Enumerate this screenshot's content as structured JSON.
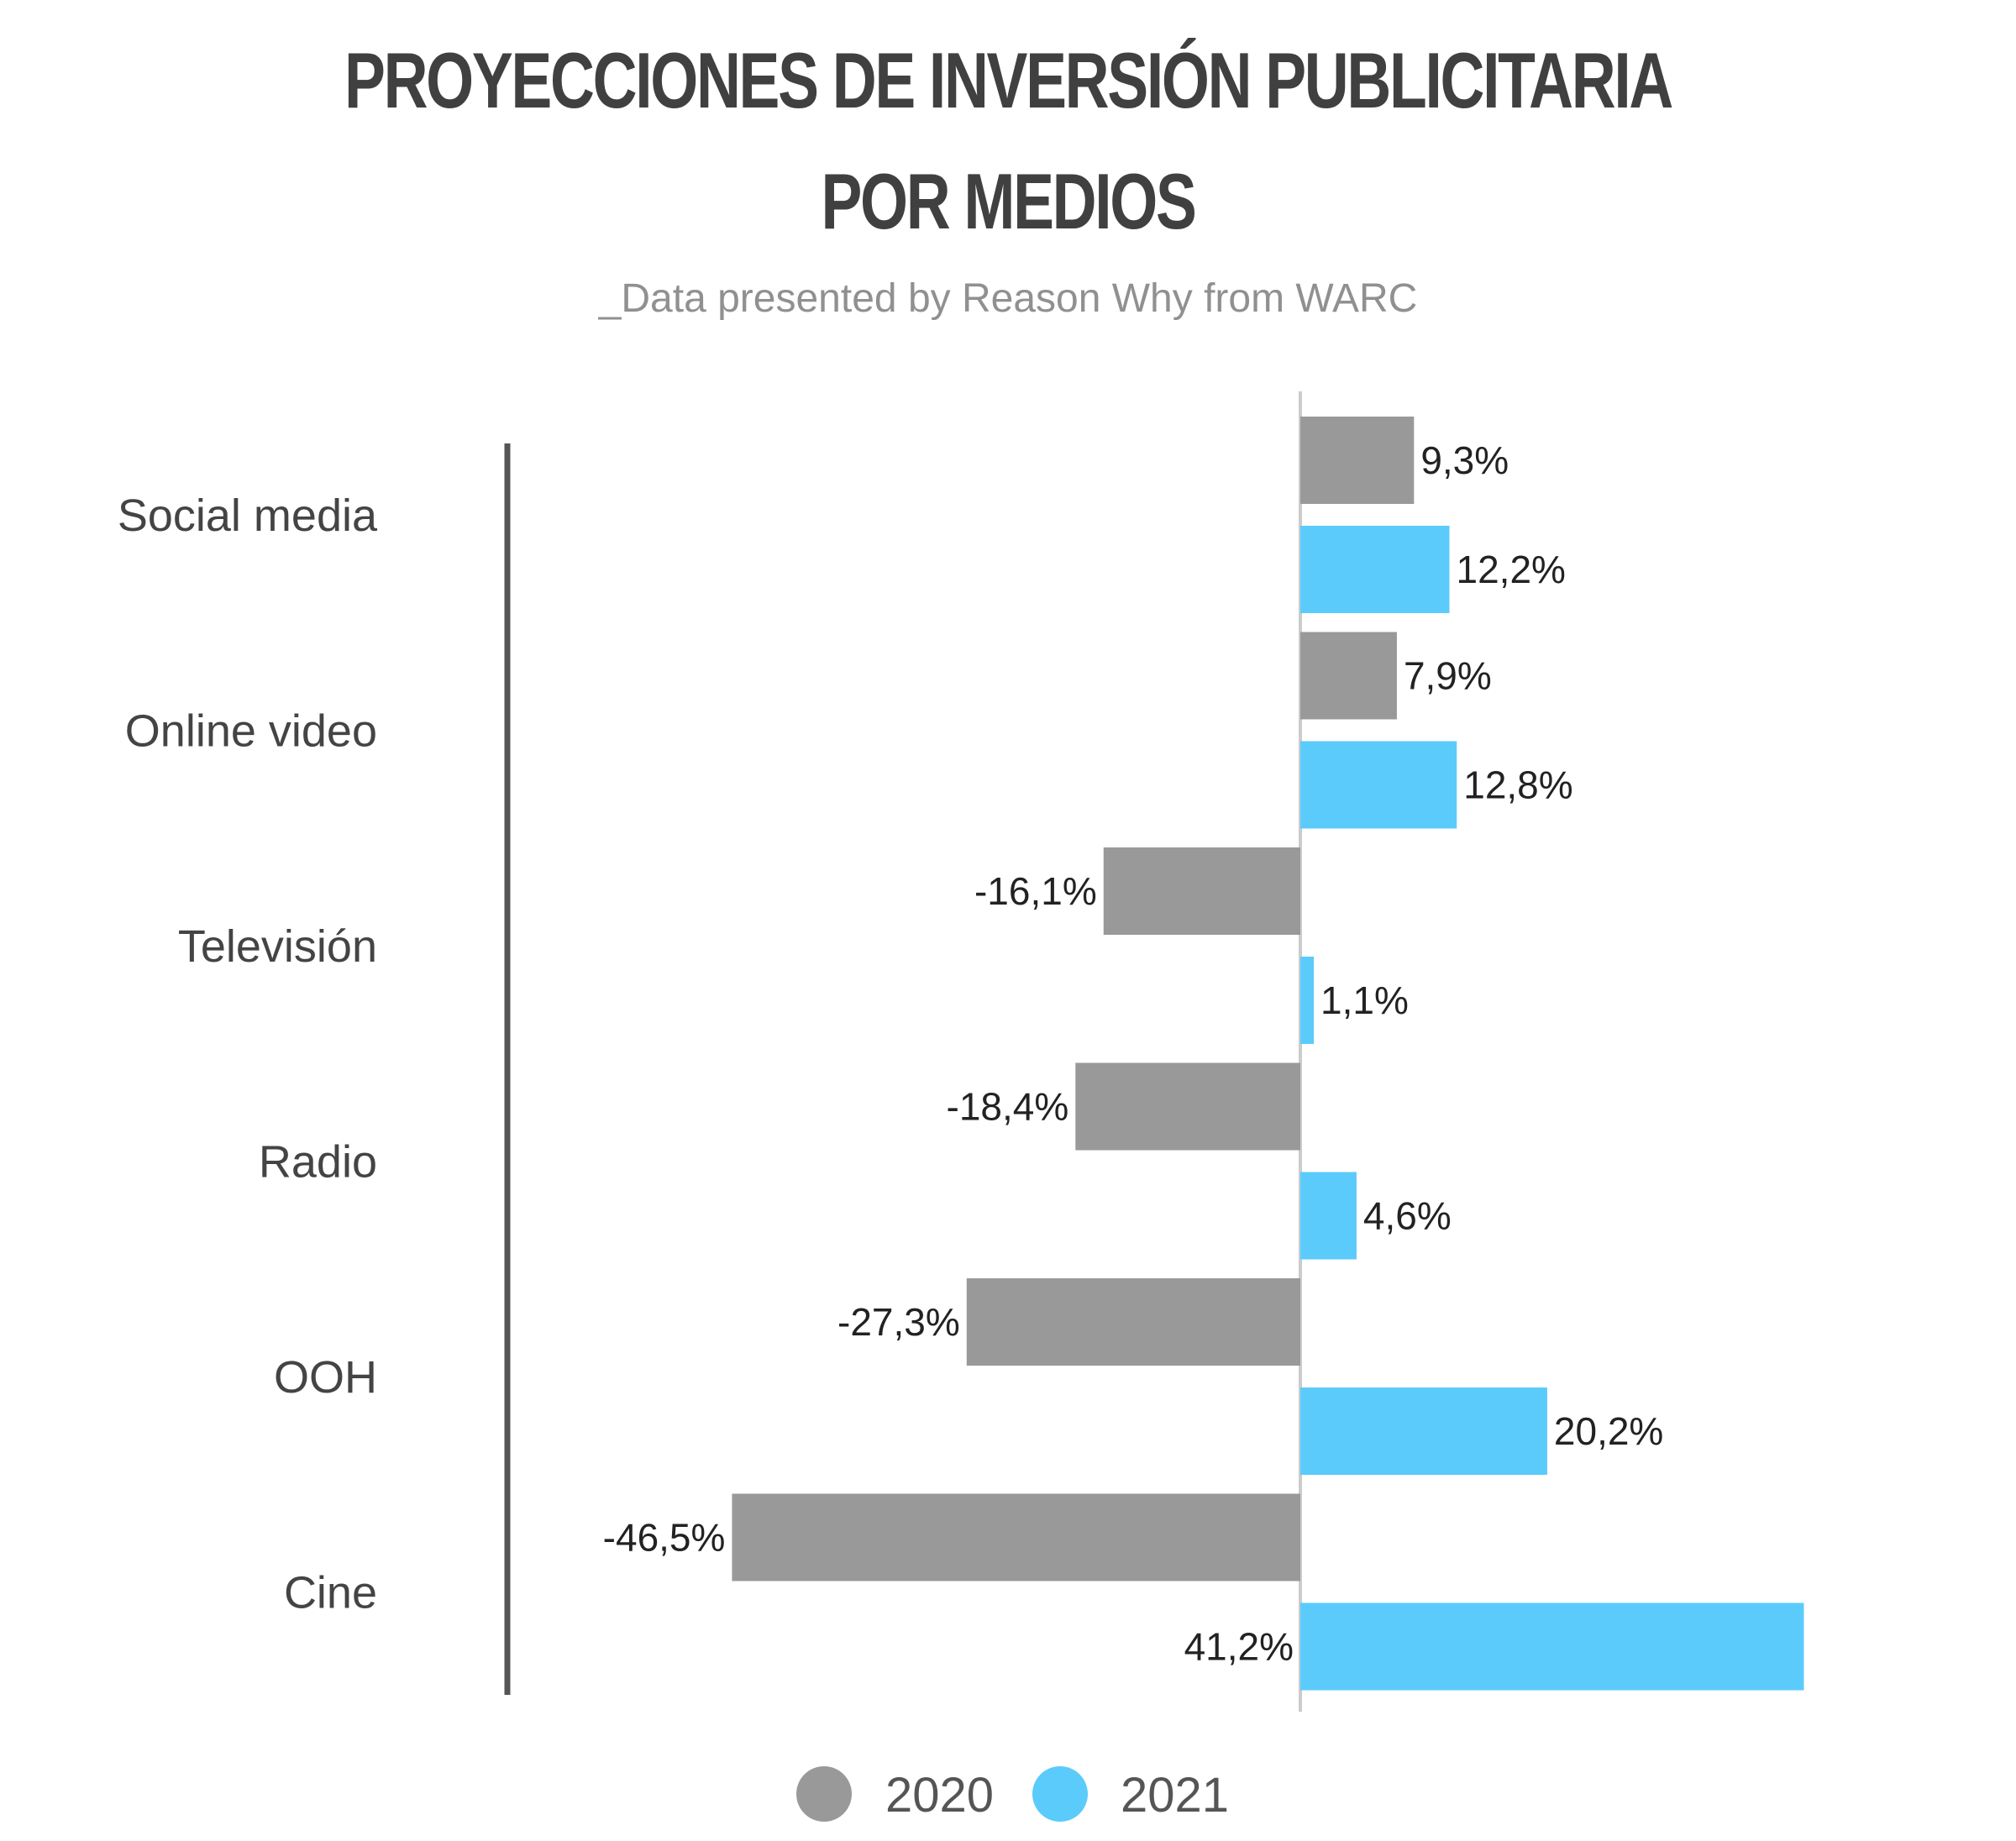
{
  "title_line1": "PROYECCIONES DE INVERSIÓN PUBLICITARIA",
  "title_line2": "POR MEDIOS",
  "subtitle": "_Data presented by Reason Why from WARC",
  "chart_data": {
    "type": "bar",
    "orientation": "horizontal",
    "categories": [
      "Social media",
      "Online video",
      "Televisión",
      "Radio",
      "OOH",
      "Cine"
    ],
    "series": [
      {
        "name": "2020",
        "color": "#999999",
        "values": [
          9.3,
          7.9,
          -16.1,
          -18.4,
          -27.3,
          -46.5
        ],
        "labels": [
          "9,3%",
          "7,9%",
          "-16,1%",
          "-18,4%",
          "-27,3%",
          "-46,5%"
        ]
      },
      {
        "name": "2021",
        "color": "#5bcbfc",
        "values": [
          12.2,
          12.8,
          1.1,
          4.6,
          20.2,
          41.2
        ],
        "labels": [
          "12,2%",
          "12,8%",
          "1,1%",
          "4,6%",
          "20,2%",
          "41,2%"
        ]
      }
    ],
    "legend": "bottom",
    "grid": false
  }
}
